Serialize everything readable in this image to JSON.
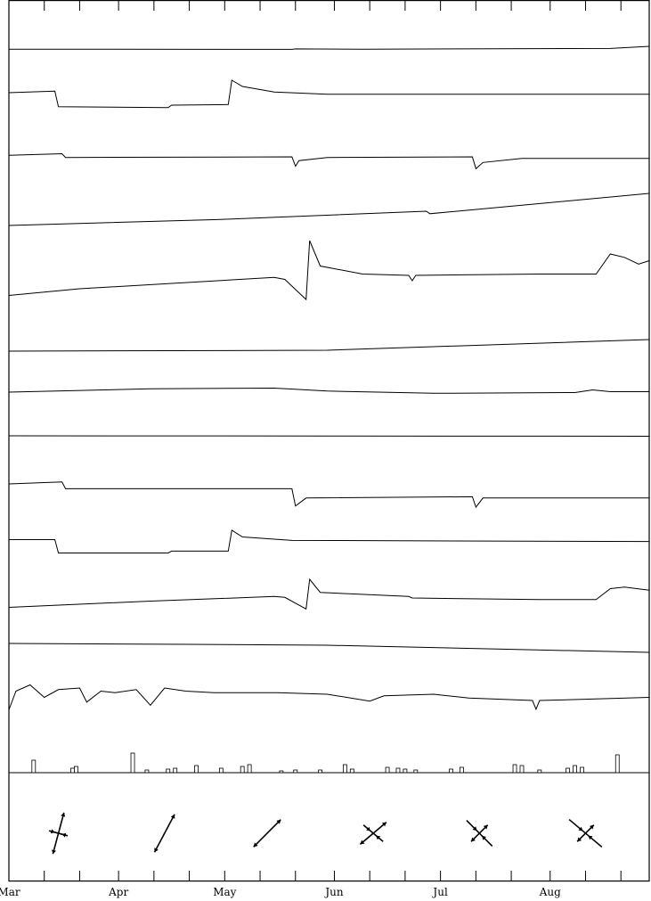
{
  "chart_data": {
    "type": "line",
    "title": "",
    "xlabel": "",
    "ylabel": "",
    "x_tick_labels": [
      "Mar",
      "Apr",
      "May",
      "Jun",
      "Jul",
      "Aug"
    ],
    "xlim_days": [
      0,
      181
    ],
    "month_starts_days": [
      0,
      31,
      61,
      92,
      122,
      153
    ],
    "minor_tick_days": [
      0,
      10,
      20,
      31,
      41,
      51,
      61,
      71,
      81,
      92,
      102,
      112,
      122,
      132,
      142,
      153,
      163,
      173
    ],
    "series": [
      {
        "points": [
          [
            0,
            0.95
          ],
          [
            80,
            0.96
          ],
          [
            81,
            0.93
          ],
          [
            100,
            0.95
          ],
          [
            170,
            0.9
          ],
          [
            181,
            0.75
          ]
        ]
      },
      {
        "points": [
          [
            0,
            0.4
          ],
          [
            13,
            0.35
          ],
          [
            14,
            0.85
          ],
          [
            45,
            0.88
          ],
          [
            46,
            0.8
          ],
          [
            62,
            0.78
          ],
          [
            63,
            0.0
          ],
          [
            66,
            0.2
          ],
          [
            75,
            0.38
          ],
          [
            90,
            0.45
          ],
          [
            181,
            0.45
          ]
        ]
      },
      {
        "points": [
          [
            0,
            0.55
          ],
          [
            15,
            0.5
          ],
          [
            16,
            0.62
          ],
          [
            80,
            0.6
          ],
          [
            81,
            0.9
          ],
          [
            82,
            0.72
          ],
          [
            90,
            0.62
          ],
          [
            131,
            0.6
          ],
          [
            132,
            0.98
          ],
          [
            134,
            0.78
          ],
          [
            145,
            0.65
          ],
          [
            181,
            0.65
          ]
        ]
      },
      {
        "points": [
          [
            0,
            0.95
          ],
          [
            60,
            0.78
          ],
          [
            118,
            0.55
          ],
          [
            119,
            0.62
          ],
          [
            181,
            0.05
          ]
        ]
      },
      {
        "points": [
          [
            0,
            0.82
          ],
          [
            20,
            0.72
          ],
          [
            75,
            0.55
          ],
          [
            78,
            0.58
          ],
          [
            84,
            0.88
          ],
          [
            85,
            0.0
          ],
          [
            88,
            0.38
          ],
          [
            100,
            0.5
          ],
          [
            113,
            0.52
          ],
          [
            114,
            0.6
          ],
          [
            115,
            0.52
          ],
          [
            150,
            0.5
          ],
          [
            166,
            0.5
          ],
          [
            170,
            0.2
          ],
          [
            174,
            0.25
          ],
          [
            178,
            0.35
          ],
          [
            181,
            0.3
          ]
        ]
      },
      {
        "points": [
          [
            0,
            0.95
          ],
          [
            90,
            0.9
          ],
          [
            181,
            0.3
          ]
        ]
      },
      {
        "points": [
          [
            0,
            0.6
          ],
          [
            40,
            0.45
          ],
          [
            75,
            0.42
          ],
          [
            90,
            0.55
          ],
          [
            120,
            0.65
          ],
          [
            160,
            0.62
          ],
          [
            165,
            0.5
          ],
          [
            170,
            0.58
          ],
          [
            181,
            0.58
          ]
        ]
      },
      {
        "points": [
          [
            0,
            0.4
          ],
          [
            90,
            0.42
          ],
          [
            181,
            0.45
          ]
        ]
      },
      {
        "points": [
          [
            0,
            0.4
          ],
          [
            15,
            0.35
          ],
          [
            16,
            0.52
          ],
          [
            80,
            0.52
          ],
          [
            81,
            0.95
          ],
          [
            84,
            0.75
          ],
          [
            131,
            0.72
          ],
          [
            132,
            0.98
          ],
          [
            134,
            0.75
          ],
          [
            181,
            0.75
          ]
        ]
      },
      {
        "points": [
          [
            0,
            0.35
          ],
          [
            13,
            0.35
          ],
          [
            14,
            0.85
          ],
          [
            45,
            0.85
          ],
          [
            46,
            0.78
          ],
          [
            62,
            0.78
          ],
          [
            63,
            0.0
          ],
          [
            66,
            0.25
          ],
          [
            80,
            0.38
          ],
          [
            181,
            0.42
          ]
        ]
      },
      {
        "points": [
          [
            0,
            0.9
          ],
          [
            40,
            0.7
          ],
          [
            75,
            0.55
          ],
          [
            78,
            0.58
          ],
          [
            84,
            0.95
          ],
          [
            85,
            0.0
          ],
          [
            88,
            0.42
          ],
          [
            113,
            0.55
          ],
          [
            114,
            0.6
          ],
          [
            150,
            0.65
          ],
          [
            166,
            0.65
          ],
          [
            170,
            0.3
          ],
          [
            174,
            0.25
          ],
          [
            181,
            0.35
          ]
        ]
      },
      {
        "points": [
          [
            0,
            0.2
          ],
          [
            50,
            0.25
          ],
          [
            90,
            0.3
          ],
          [
            181,
            0.7
          ]
        ]
      },
      {
        "points": [
          [
            0,
            0.9
          ],
          [
            2,
            0.3
          ],
          [
            6,
            0.1
          ],
          [
            10,
            0.5
          ],
          [
            14,
            0.25
          ],
          [
            20,
            0.2
          ],
          [
            22,
            0.65
          ],
          [
            26,
            0.3
          ],
          [
            30,
            0.35
          ],
          [
            36,
            0.25
          ],
          [
            40,
            0.75
          ],
          [
            44,
            0.2
          ],
          [
            50,
            0.3
          ],
          [
            58,
            0.35
          ],
          [
            66,
            0.35
          ],
          [
            76,
            0.35
          ],
          [
            90,
            0.4
          ],
          [
            102,
            0.62
          ],
          [
            106,
            0.45
          ],
          [
            120,
            0.4
          ],
          [
            130,
            0.52
          ],
          [
            148,
            0.6
          ],
          [
            149,
            0.88
          ],
          [
            150,
            0.6
          ],
          [
            166,
            0.55
          ],
          [
            181,
            0.5
          ]
        ]
      }
    ],
    "precipitation_bars": [
      {
        "day": 7,
        "value": 14
      },
      {
        "day": 18,
        "value": 5
      },
      {
        "day": 19,
        "value": 7
      },
      {
        "day": 35,
        "value": 22
      },
      {
        "day": 39,
        "value": 3
      },
      {
        "day": 45,
        "value": 4
      },
      {
        "day": 47,
        "value": 5
      },
      {
        "day": 53,
        "value": 8
      },
      {
        "day": 60,
        "value": 5
      },
      {
        "day": 66,
        "value": 7
      },
      {
        "day": 68,
        "value": 9
      },
      {
        "day": 77,
        "value": 2
      },
      {
        "day": 81,
        "value": 3
      },
      {
        "day": 88,
        "value": 3
      },
      {
        "day": 95,
        "value": 9
      },
      {
        "day": 97,
        "value": 4
      },
      {
        "day": 107,
        "value": 6
      },
      {
        "day": 110,
        "value": 5
      },
      {
        "day": 112,
        "value": 4
      },
      {
        "day": 115,
        "value": 3
      },
      {
        "day": 125,
        "value": 4
      },
      {
        "day": 128,
        "value": 6
      },
      {
        "day": 143,
        "value": 9
      },
      {
        "day": 145,
        "value": 8
      },
      {
        "day": 150,
        "value": 3
      },
      {
        "day": 158,
        "value": 5
      },
      {
        "day": 160,
        "value": 8
      },
      {
        "day": 162,
        "value": 6
      },
      {
        "day": 172,
        "value": 20
      }
    ],
    "precipitation_max": 22,
    "strain_glyphs": [
      {
        "day": 14,
        "axes": [
          {
            "angle": 75,
            "length": 1.0,
            "arrows": "outward"
          },
          {
            "angle": 165,
            "length": 0.45,
            "arrows": "inward"
          }
        ]
      },
      {
        "day": 44,
        "axes": [
          {
            "angle": 62,
            "length": 1.0,
            "arrows": "outward"
          }
        ]
      },
      {
        "day": 73,
        "axes": [
          {
            "angle": 45,
            "length": 0.9,
            "arrows": "outward"
          }
        ]
      },
      {
        "day": 103,
        "axes": [
          {
            "angle": 40,
            "length": 0.8,
            "arrows": "outward"
          },
          {
            "angle": 140,
            "length": 0.6,
            "arrows": "inward"
          }
        ]
      },
      {
        "day": 133,
        "axes": [
          {
            "angle": 45,
            "length": 0.55,
            "arrows": "outward"
          },
          {
            "angle": 135,
            "length": 0.85,
            "arrows": "inward"
          }
        ]
      },
      {
        "day": 163,
        "axes": [
          {
            "angle": 45,
            "length": 0.55,
            "arrows": "outward"
          },
          {
            "angle": 140,
            "length": 1.0,
            "arrows": "inward"
          }
        ]
      }
    ]
  }
}
